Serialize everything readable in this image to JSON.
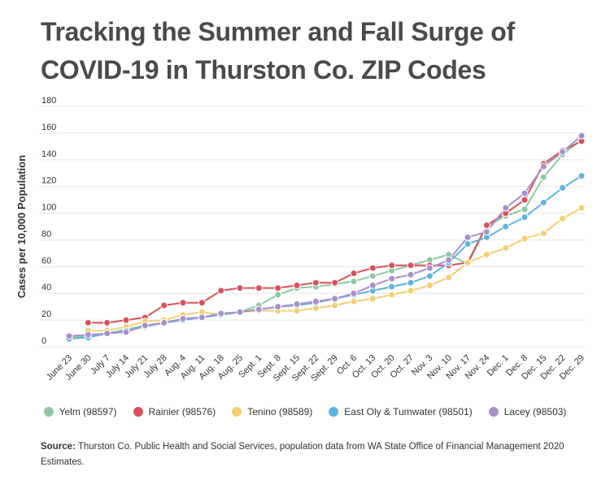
{
  "title_line1": "Tracking the Summer and Fall Surge of",
  "title_line2": "COVID-19 in Thurston Co. ZIP Codes",
  "source_label": "Source:",
  "source_text": " Thurston Co. Public Health and Social Services, population data from WA State Office of Financial Management 2020 Estimates.",
  "chart_data": {
    "type": "line",
    "ylabel": "Cases per 10,000 Population",
    "xlabel": "",
    "ylim": [
      0,
      180
    ],
    "yticks": [
      0,
      20,
      40,
      60,
      80,
      100,
      120,
      140,
      160,
      180
    ],
    "grid": true,
    "legend_position": "bottom",
    "categories": [
      "June 23",
      "June 30",
      "July 7",
      "July 14",
      "July 21",
      "July 28",
      "Aug. 4",
      "Aug. 11",
      "Aug. 18",
      "Aug. 25",
      "Sept. 1",
      "Sept. 8",
      "Sept. 15",
      "Sept. 22",
      "Sept. 29",
      "Oct. 6",
      "Oct. 13",
      "Oct. 20",
      "Oct. 27",
      "Nov. 3",
      "Nov. 10",
      "Nov. 17",
      "Nov. 24",
      "Dec. 1",
      "Dec. 8",
      "Dec. 15",
      "Dec. 22",
      "Dec. 29"
    ],
    "series": [
      {
        "name": "Yelm (98597)",
        "color": "#8cc9a0",
        "values": [
          7,
          8,
          10,
          13,
          16,
          18,
          21,
          22,
          24,
          26,
          31,
          39,
          44,
          45,
          47,
          49,
          53,
          57,
          61,
          65,
          69,
          62,
          90,
          98,
          103,
          127,
          144,
          155
        ]
      },
      {
        "name": "Rainier (98576)",
        "color": "#d9505a",
        "values": [
          null,
          18,
          18,
          20,
          22,
          31,
          33,
          33,
          42,
          44,
          44,
          44,
          46,
          48,
          48,
          55,
          59,
          61,
          61,
          61,
          61,
          63,
          91,
          100,
          110,
          137,
          147,
          154
        ]
      },
      {
        "name": "Tenino (98589)",
        "color": "#f5ce72",
        "values": [
          null,
          12,
          12,
          15,
          19,
          20,
          24,
          26,
          24,
          26,
          27,
          27,
          27,
          29,
          31,
          34,
          36,
          39,
          42,
          46,
          52,
          63,
          69,
          74,
          81,
          85,
          96,
          104
        ]
      },
      {
        "name": "East Oly & Tumwater (98501)",
        "color": "#5db3e0",
        "values": [
          6,
          7,
          10,
          12,
          15,
          18,
          20,
          22,
          24,
          26,
          28,
          30,
          31,
          33,
          36,
          39,
          42,
          45,
          48,
          53,
          63,
          77,
          82,
          90,
          97,
          108,
          119,
          128
        ]
      },
      {
        "name": "Lacey (98503)",
        "color": "#a98fcc",
        "values": [
          8,
          9,
          10,
          11,
          16,
          18,
          21,
          22,
          25,
          26,
          28,
          30,
          32,
          34,
          36,
          40,
          46,
          51,
          54,
          59,
          65,
          82,
          86,
          104,
          115,
          135,
          146,
          158
        ]
      }
    ]
  }
}
